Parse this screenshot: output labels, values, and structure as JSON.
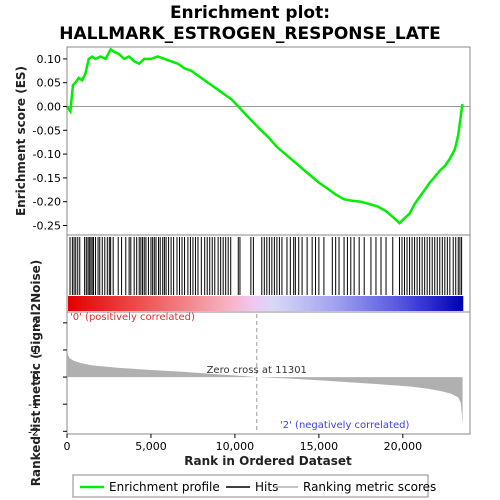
{
  "title_line1": "Enrichment plot:",
  "title_line2": "HALLMARK_ESTROGEN_RESPONSE_LATE",
  "colors": {
    "profile": "#00ee00",
    "hits": "#000000",
    "metric": "#b0b0b0",
    "positive_label": "#e03030",
    "negative_label": "#4040e0",
    "zero_line": "#999999"
  },
  "chart_data": [
    {
      "type": "line",
      "name": "enrichment-profile-panel",
      "ylabel": "Enrichment score (ES)",
      "ylim": [
        -0.27,
        0.125
      ],
      "yticks": [
        0.1,
        0.05,
        0.0,
        -0.05,
        -0.1,
        -0.15,
        -0.2,
        -0.25
      ],
      "ytick_labels": [
        "0.10",
        "0.05",
        "0.00",
        "-0.05",
        "-0.10",
        "-0.15",
        "-0.20",
        "-0.25"
      ],
      "x": [
        0,
        200,
        350,
        500,
        700,
        900,
        1100,
        1300,
        1500,
        1700,
        2000,
        2300,
        2600,
        2800,
        3100,
        3400,
        3700,
        4000,
        4300,
        4600,
        5000,
        5400,
        5800,
        6200,
        6600,
        7000,
        7400,
        7800,
        8200,
        8600,
        9000,
        9400,
        9800,
        10200,
        10600,
        11000,
        11500,
        12000,
        12500,
        13000,
        13500,
        14000,
        14500,
        15000,
        15500,
        16000,
        16500,
        17000,
        17500,
        18000,
        18500,
        19000,
        19500,
        19800,
        20100,
        20400,
        20700,
        21000,
        21300,
        21600,
        21900,
        22200,
        22500,
        22800,
        23100,
        23300,
        23450,
        23550
      ],
      "y": [
        0.0,
        -0.01,
        0.045,
        0.05,
        0.06,
        0.055,
        0.07,
        0.1,
        0.105,
        0.1,
        0.105,
        0.1,
        0.12,
        0.115,
        0.11,
        0.1,
        0.105,
        0.095,
        0.09,
        0.1,
        0.1,
        0.105,
        0.1,
        0.095,
        0.09,
        0.08,
        0.075,
        0.065,
        0.055,
        0.045,
        0.035,
        0.025,
        0.015,
        0.0,
        -0.015,
        -0.03,
        -0.048,
        -0.065,
        -0.085,
        -0.1,
        -0.115,
        -0.13,
        -0.145,
        -0.16,
        -0.172,
        -0.185,
        -0.195,
        -0.198,
        -0.2,
        -0.205,
        -0.21,
        -0.22,
        -0.235,
        -0.245,
        -0.235,
        -0.225,
        -0.205,
        -0.19,
        -0.175,
        -0.16,
        -0.148,
        -0.135,
        -0.125,
        -0.11,
        -0.09,
        -0.06,
        -0.02,
        0.005
      ],
      "xlim": [
        0,
        24000
      ]
    },
    {
      "type": "hits",
      "name": "hits-panel",
      "hit_positions": [
        180,
        320,
        420,
        520,
        640,
        760,
        1050,
        1150,
        1250,
        1330,
        1420,
        1500,
        1580,
        1700,
        1850,
        1950,
        2100,
        2250,
        2400,
        2520,
        2600,
        2750,
        3050,
        3250,
        3500,
        3700,
        3800,
        4000,
        4150,
        4300,
        4400,
        4500,
        4600,
        4700,
        4850,
        5000,
        5100,
        5200,
        5300,
        5450,
        5550,
        5700,
        5800,
        5900,
        6050,
        6200,
        6350,
        6550,
        6700,
        6850,
        7000,
        7200,
        7350,
        7500,
        7650,
        7800,
        8000,
        8200,
        8350,
        8500,
        8650,
        8800,
        9000,
        9150,
        9300,
        9450,
        9600,
        9750,
        10200,
        10300,
        10950,
        11100,
        11600,
        11750,
        11900,
        12050,
        12200,
        12350,
        12500,
        12650,
        12800,
        13100,
        13300,
        13500,
        13600,
        13800,
        14000,
        14300,
        14600,
        14800,
        15000,
        15300,
        15800,
        16000,
        16200,
        16500,
        16700,
        16900,
        17100,
        17400,
        17700,
        18100,
        18400,
        18700,
        19000,
        19400,
        19800,
        19950,
        20100,
        20250,
        20400,
        20550,
        20700,
        20850,
        21000,
        21150,
        21300,
        21450,
        21600,
        21750,
        21900,
        22050,
        22200,
        22350,
        22500,
        22650,
        22800,
        23000,
        23150,
        23300,
        23400,
        23500
      ]
    },
    {
      "type": "area",
      "name": "ranked-metric-panel",
      "ylabel": "Ranked list metric (Signal2Noise)",
      "xlabel": "Rank in Ordered Dataset",
      "xlim": [
        0,
        24000
      ],
      "ylim": [
        -2.1,
        2.4
      ],
      "yticks": [
        2,
        1,
        0,
        -1,
        -2
      ],
      "xticks": [
        0,
        5000,
        10000,
        15000,
        20000
      ],
      "xtick_labels": [
        "0",
        "5,000",
        "10,000",
        "15,000",
        "20,000"
      ],
      "x": [
        0,
        50,
        150,
        400,
        800,
        1500,
        3000,
        5000,
        7000,
        9000,
        10500,
        11301,
        13000,
        15000,
        17000,
        19000,
        20500,
        21500,
        22300,
        22900,
        23300,
        23450,
        23520,
        23560
      ],
      "y": [
        1.2,
        0.85,
        0.7,
        0.6,
        0.52,
        0.43,
        0.34,
        0.26,
        0.19,
        0.1,
        0.04,
        0.0,
        -0.05,
        -0.12,
        -0.2,
        -0.28,
        -0.35,
        -0.43,
        -0.52,
        -0.62,
        -0.75,
        -0.95,
        -1.4,
        -1.8
      ],
      "annotations": {
        "zero_cross": "Zero cross at 11301",
        "zero_cross_rank": 11301,
        "positive": "'0' (positively correlated)",
        "negative": "'2' (negatively correlated)"
      }
    }
  ],
  "legend": {
    "items": [
      {
        "label": "Enrichment profile",
        "color": "#00ee00"
      },
      {
        "label": "Hits",
        "color": "#000000"
      },
      {
        "label": "Ranking metric scores",
        "color": "#b0b0b0"
      }
    ]
  }
}
